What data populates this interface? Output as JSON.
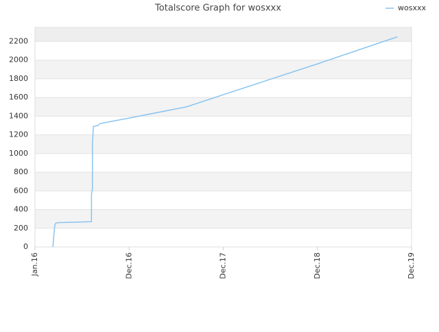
{
  "chart_data": {
    "type": "line",
    "title": "Totalscore Graph for wosxxx",
    "x": [
      2016.19,
      2016.2,
      2016.21,
      2016.22,
      2016.24,
      2016.43,
      2016.6,
      2016.6,
      2016.61,
      2016.61,
      2016.62,
      2016.67,
      2016.69,
      2016.74,
      2017.0,
      2017.61,
      2018.0,
      2019.0,
      2019.85
    ],
    "series": [
      {
        "name": "wosxxx",
        "color": "#88c4f0",
        "values": [
          0,
          120,
          230,
          255,
          260,
          265,
          270,
          560,
          620,
          1100,
          1290,
          1300,
          1320,
          1330,
          1380,
          1500,
          1630,
          1960,
          2250
        ]
      }
    ],
    "xlim": [
      2016,
      2020
    ],
    "xticks": [
      {
        "value": 2016,
        "label": "Jan.16"
      },
      {
        "value": 2017,
        "label": "Dec.16"
      },
      {
        "value": 2018,
        "label": "Dec.17"
      },
      {
        "value": 2019,
        "label": "Dec.18"
      },
      {
        "value": 2020,
        "label": "Dec.19"
      }
    ],
    "ylim": [
      0,
      2350
    ],
    "yticks": [
      0,
      200,
      400,
      600,
      800,
      1000,
      1200,
      1400,
      1600,
      1800,
      2000,
      2200
    ],
    "grid": true,
    "legend": "top-right"
  }
}
